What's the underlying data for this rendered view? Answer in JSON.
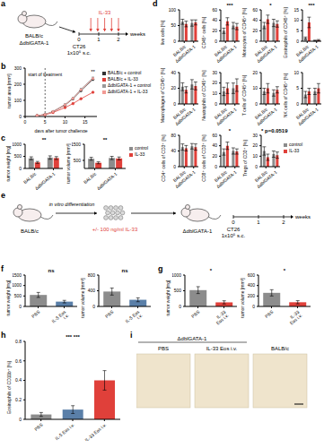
{
  "chart_data": [
    {
      "panel": "b",
      "type": "line",
      "y_label": "tumor area [mm²]",
      "x_label": "days after tumor challenge",
      "x": [
        3,
        5,
        7,
        10,
        12,
        14,
        17
      ],
      "xlim": [
        0,
        18
      ],
      "xticks": [
        0,
        5,
        10,
        15
      ],
      "ylim": [
        0,
        300
      ],
      "yticks": [
        0,
        100,
        200,
        300
      ],
      "legend": "right",
      "series": [
        {
          "name": "BALB/c + control",
          "color": "#333333",
          "marker": "circle",
          "values": [
            5,
            12,
            30,
            70,
            110,
            160,
            230
          ]
        },
        {
          "name": "BALB/c + IL-33",
          "color": "#e0403a",
          "marker": "circle",
          "values": [
            5,
            11,
            25,
            55,
            80,
            110,
            150
          ]
        },
        {
          "name": "ΔdblGATA-1 + control",
          "color": "#999999",
          "marker": "square",
          "values": [
            5,
            13,
            32,
            75,
            115,
            170,
            240
          ]
        },
        {
          "name": "ΔdblGATA-1 + IL-33",
          "color": "#f29a94",
          "marker": "square",
          "values": [
            5,
            12,
            30,
            72,
            112,
            165,
            235
          ]
        }
      ],
      "annotations": [
        {
          "text": "start of treatment",
          "x": 5,
          "line_style": "dashed"
        },
        {
          "text": "**",
          "x": 17
        }
      ]
    },
    {
      "panel": "c",
      "type": "bar",
      "y_label": "tumor weight [mg]",
      "categories": [
        "BALB/c",
        "ΔdblGATA-1"
      ],
      "ylim": [
        0,
        1000
      ],
      "yticks": [
        0,
        500,
        1000
      ],
      "series": [
        {
          "name": "control",
          "color": "#8c8c8c",
          "values": [
            420,
            450
          ],
          "errors": [
            60,
            70
          ]
        },
        {
          "name": "IL-33",
          "color": "#e0403a",
          "values": [
            250,
            430
          ],
          "errors": [
            40,
            60
          ]
        }
      ],
      "annotations": [
        "**"
      ]
    },
    {
      "type": "bar",
      "y_label": "tumor volume [mm³]",
      "categories": [
        "BALB/c",
        "ΔdblGATA-1"
      ],
      "ylim": [
        0,
        1500
      ],
      "yticks": [
        0,
        500,
        1000,
        1500
      ],
      "legend": "right",
      "series": [
        {
          "name": "control",
          "color": "#8c8c8c",
          "values": [
            600,
            650
          ],
          "errors": [
            90,
            100
          ]
        },
        {
          "name": "IL-33",
          "color": "#e0403a",
          "values": [
            350,
            620
          ],
          "errors": [
            60,
            90
          ]
        }
      ],
      "annotations": [
        "**"
      ]
    },
    {
      "panel": "d",
      "type": "bar",
      "y_label": "live cells [%]",
      "categories": [
        "BALB/c",
        "ΔdblGATA-1"
      ],
      "ylim": [
        0,
        100
      ],
      "yticks": [
        0,
        50,
        100
      ],
      "series": [
        {
          "name": "control",
          "color": "#8c8c8c",
          "values": [
            62,
            58
          ],
          "errors": [
            8,
            10
          ]
        },
        {
          "name": "IL-33",
          "color": "#e0403a",
          "values": [
            55,
            60
          ],
          "errors": [
            9,
            8
          ]
        }
      ]
    },
    {
      "type": "bar",
      "y_label": "CD45⁺ cells [%]",
      "categories": [
        "BALB/c",
        "ΔdblGATA-1"
      ],
      "ylim": [
        0,
        60
      ],
      "yticks": [
        0,
        20,
        40,
        60
      ],
      "series": [
        {
          "name": "control",
          "color": "#8c8c8c",
          "values": [
            20,
            30
          ],
          "errors": [
            5,
            6
          ]
        },
        {
          "name": "IL-33",
          "color": "#e0403a",
          "values": [
            38,
            28
          ],
          "errors": [
            7,
            6
          ]
        }
      ],
      "annotations": [
        "***"
      ]
    },
    {
      "type": "bar",
      "y_label": "Monocytes of CD45⁺ [%]",
      "categories": [
        "BALB/c",
        "ΔdblGATA-1"
      ],
      "ylim": [
        0,
        60
      ],
      "yticks": [
        0,
        20,
        40,
        60
      ],
      "series": [
        {
          "name": "control",
          "color": "#8c8c8c",
          "values": [
            30,
            35
          ],
          "errors": [
            6,
            7
          ]
        },
        {
          "name": "IL-33",
          "color": "#e0403a",
          "values": [
            42,
            33
          ],
          "errors": [
            8,
            6
          ]
        }
      ],
      "annotations": [
        "*"
      ]
    },
    {
      "type": "bar",
      "y_label": "Eosinophils of CD45⁺ [%]",
      "categories": [
        "BALB/c",
        "ΔdblGATA-1"
      ],
      "ylim": [
        0,
        15
      ],
      "yticks": [
        0,
        5,
        10,
        15
      ],
      "series": [
        {
          "name": "control",
          "color": "#8c8c8c",
          "values": [
            1.5,
            0.3
          ],
          "errors": [
            0.5,
            0.2
          ]
        },
        {
          "name": "IL-33",
          "color": "#e0403a",
          "values": [
            9,
            0.5
          ],
          "errors": [
            2.5,
            0.3
          ]
        }
      ],
      "annotations": [
        "***"
      ]
    },
    {
      "type": "bar",
      "y_label": "Macrophages of CD45⁺ [%]",
      "categories": [
        "BALB/c",
        "ΔdblGATA-1"
      ],
      "ylim": [
        0,
        40
      ],
      "yticks": [
        0,
        20,
        40
      ],
      "series": [
        {
          "name": "control",
          "color": "#8c8c8c",
          "values": [
            22,
            25
          ],
          "errors": [
            5,
            6
          ]
        },
        {
          "name": "IL-33",
          "color": "#e0403a",
          "values": [
            18,
            23
          ],
          "errors": [
            4,
            5
          ]
        }
      ]
    },
    {
      "type": "bar",
      "y_label": "Neutrophils of CD45⁺ [%]",
      "categories": [
        "BALB/c",
        "ΔdblGATA-1"
      ],
      "ylim": [
        0,
        30
      ],
      "yticks": [
        0,
        10,
        20,
        30
      ],
      "series": [
        {
          "name": "control",
          "color": "#8c8c8c",
          "values": [
            12,
            15
          ],
          "errors": [
            4,
            5
          ]
        },
        {
          "name": "IL-33",
          "color": "#e0403a",
          "values": [
            15,
            18
          ],
          "errors": [
            5,
            6
          ]
        }
      ]
    },
    {
      "type": "bar",
      "y_label": "T cells of CD45⁺ [%]",
      "categories": [
        "BALB/c",
        "ΔdblGATA-1"
      ],
      "ylim": [
        0,
        20
      ],
      "yticks": [
        0,
        10,
        20
      ],
      "series": [
        {
          "name": "control",
          "color": "#8c8c8c",
          "values": [
            8,
            7
          ],
          "errors": [
            2,
            2
          ]
        },
        {
          "name": "IL-33",
          "color": "#e0403a",
          "values": [
            10,
            9
          ],
          "errors": [
            3,
            2
          ]
        }
      ]
    },
    {
      "type": "bar",
      "y_label": "NK cells of CD45⁺ [%]",
      "categories": [
        "BALB/c",
        "ΔdblGATA-1"
      ],
      "ylim": [
        0,
        10
      ],
      "yticks": [
        0,
        5,
        10
      ],
      "series": [
        {
          "name": "control",
          "color": "#8c8c8c",
          "values": [
            3,
            4
          ],
          "errors": [
            1,
            1
          ]
        },
        {
          "name": "IL-33",
          "color": "#e0403a",
          "values": [
            4,
            5
          ],
          "errors": [
            1,
            1.5
          ]
        }
      ]
    },
    {
      "type": "bar",
      "y_label": "CD4⁺ cells of CD3⁺ [%]",
      "categories": [
        "BALB/c",
        "ΔdblGATA-1"
      ],
      "ylim": [
        0,
        80
      ],
      "yticks": [
        0,
        40,
        80
      ],
      "series": [
        {
          "name": "control",
          "color": "#8c8c8c",
          "values": [
            50,
            52
          ],
          "errors": [
            8,
            7
          ]
        },
        {
          "name": "IL-33",
          "color": "#e0403a",
          "values": [
            47,
            50
          ],
          "errors": [
            7,
            8
          ]
        }
      ]
    },
    {
      "type": "bar",
      "y_label": "CD8⁺ cells of CD3⁺ [%]",
      "categories": [
        "BALB/c",
        "ΔdblGATA-1"
      ],
      "ylim": [
        0,
        60
      ],
      "yticks": [
        0,
        20,
        40,
        60
      ],
      "series": [
        {
          "name": "control",
          "color": "#8c8c8c",
          "values": [
            28,
            30
          ],
          "errors": [
            6,
            6
          ]
        },
        {
          "name": "IL-33",
          "color": "#e0403a",
          "values": [
            40,
            29
          ],
          "errors": [
            7,
            5
          ]
        }
      ],
      "annotations": [
        "*"
      ]
    },
    {
      "type": "bar",
      "y_label": "Tregs of CD3⁺ [%]",
      "categories": [
        "BALB/c",
        "ΔdblGATA-1"
      ],
      "ylim": [
        0,
        30
      ],
      "yticks": [
        0,
        10,
        20,
        30
      ],
      "legend": "right",
      "series": [
        {
          "name": "control",
          "color": "#8c8c8c",
          "values": [
            15,
            12
          ],
          "errors": [
            4,
            3
          ]
        },
        {
          "name": "IL-33",
          "color": "#e0403a",
          "values": [
            9,
            11
          ],
          "errors": [
            3,
            3
          ]
        }
      ],
      "annotations": [
        "*",
        "p=0.0519"
      ]
    },
    {
      "panel": "f",
      "type": "bar",
      "y_label": "tumor weight [mg]",
      "categories": [
        "PBS",
        "IL-5 Eos i.v."
      ],
      "values": [
        550,
        230
      ],
      "errors": [
        120,
        60
      ],
      "colors": [
        "#8c8c8c",
        "#5a7fa8"
      ],
      "ylim": [
        0,
        1500
      ],
      "yticks": [
        0,
        500,
        1000,
        1500
      ],
      "annotations": [
        "ns"
      ]
    },
    {
      "type": "bar",
      "y_label": "tumor volume [mm³]",
      "categories": [
        "PBS",
        "IL-5 Eos i.v."
      ],
      "values": [
        380,
        170
      ],
      "errors": [
        90,
        50
      ],
      "colors": [
        "#8c8c8c",
        "#5a7fa8"
      ],
      "ylim": [
        0,
        800
      ],
      "yticks": [
        0,
        200,
        400,
        600,
        800
      ],
      "annotations": [
        "ns"
      ]
    },
    {
      "panel": "g",
      "type": "bar",
      "y_label": "tumor weight [mg]",
      "categories": [
        "PBS",
        "IL-33 Eos i.v."
      ],
      "values": [
        520,
        130
      ],
      "errors": [
        110,
        50
      ],
      "colors": [
        "#8c8c8c",
        "#e0403a"
      ],
      "ylim": [
        0,
        1000
      ],
      "yticks": [
        0,
        500,
        1000
      ],
      "annotations": [
        "*"
      ]
    },
    {
      "type": "bar",
      "y_label": "tumor volume [mm³]",
      "categories": [
        "PBS",
        "IL-33 Eos i.v."
      ],
      "values": [
        260,
        80
      ],
      "errors": [
        60,
        30
      ],
      "colors": [
        "#8c8c8c",
        "#e0403a"
      ],
      "ylim": [
        0,
        600
      ],
      "yticks": [
        0,
        200,
        400,
        600
      ],
      "annotations": [
        "*"
      ]
    },
    {
      "panel": "h",
      "type": "bar",
      "y_label": "Eosinophils of CD11b⁺ [%]",
      "categories": [
        "PBS",
        "IL-5 Eos i.v.",
        "IL-33 Eos i.v."
      ],
      "values": [
        0.05,
        0.1,
        0.4
      ],
      "errors": [
        0.02,
        0.04,
        0.1
      ],
      "colors": [
        "#8c8c8c",
        "#5a7fa8",
        "#e0403a"
      ],
      "ylim": [
        0,
        0.8
      ],
      "yticks": [
        0,
        0.2,
        0.4,
        0.6,
        0.8
      ],
      "annotations": [
        "***",
        "***"
      ]
    }
  ],
  "diagrams": {
    "a": {
      "panel": "a",
      "mice": [
        "BALB/c",
        "ΔdblGATA-1"
      ],
      "injection": "CT26",
      "dose": "1x10⁵ s.c.",
      "treatment": "IL-33",
      "timeline_ticks": [
        0,
        1,
        2
      ],
      "timeline_unit": "weeks"
    },
    "e": {
      "panel": "e",
      "mouse": "BALB/c",
      "step": "in vitro differentiation",
      "treatment": "+/- 100 ng/ml IL-33",
      "recipient": "ΔdblGATA-1",
      "injection": "CT26",
      "dose": "1x10⁵ s.c.",
      "timeline_ticks": [
        0,
        1,
        2
      ],
      "timeline_unit": "weeks"
    },
    "i": {
      "panel": "i",
      "group_label": "ΔdblGATA-1",
      "images": [
        "PBS",
        "IL-33 Eos i.v.",
        "BALB/c"
      ]
    }
  }
}
